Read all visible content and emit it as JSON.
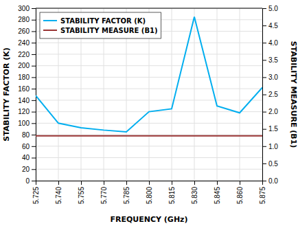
{
  "chart_data": {
    "type": "line",
    "xlabel": "FREQUENCY (GHz)",
    "ylabel": "STABILITY FACTOR (K)",
    "y2label": "STABILITY MEASURE (B1)",
    "x": [
      5.725,
      5.74,
      5.755,
      5.77,
      5.785,
      5.8,
      5.815,
      5.83,
      5.845,
      5.86,
      5.875
    ],
    "series": [
      {
        "name": "STABILITY FACTOR (K)",
        "color": "#00AEEF",
        "values": [
          148,
          100,
          92,
          88,
          85,
          120,
          125,
          285,
          130,
          118,
          162
        ]
      },
      {
        "name": "STABILITY MEASURE (B1)",
        "color": "#993333",
        "axis": "y2",
        "values": [
          1.3,
          1.3,
          1.3,
          1.3,
          1.3,
          1.3,
          1.3,
          1.3,
          1.3,
          1.3,
          1.3
        ]
      }
    ],
    "xlim": [
      5.725,
      5.875
    ],
    "xticks": [
      5.725,
      {
        "value": 5.74,
        "label": "5.740"
      },
      5.755,
      {
        "value": 5.77,
        "label": "5.770"
      },
      5.785,
      {
        "value": 5.8,
        "label": "5.800"
      },
      5.815,
      {
        "value": 5.83,
        "label": "5.830"
      },
      5.845,
      {
        "value": 5.86,
        "label": "5.860"
      },
      5.875
    ],
    "ylim": [
      0,
      300
    ],
    "yticks": [
      0,
      20,
      40,
      60,
      80,
      100,
      120,
      140,
      160,
      180,
      200,
      220,
      240,
      260,
      280,
      300
    ],
    "y2lim": [
      0,
      5.0
    ],
    "y2ticks": [
      {
        "value": 0,
        "label": "0.0"
      },
      0.5,
      {
        "value": 1.0,
        "label": "1.0"
      },
      1.5,
      {
        "value": 2.0,
        "label": "2.0"
      },
      2.5,
      {
        "value": 3.0,
        "label": "3.0"
      },
      3.5,
      {
        "value": 4.0,
        "label": "4.0"
      },
      4.5,
      {
        "value": 5.0,
        "label": "5.0"
      }
    ],
    "grid": true,
    "legend": "upper left"
  }
}
